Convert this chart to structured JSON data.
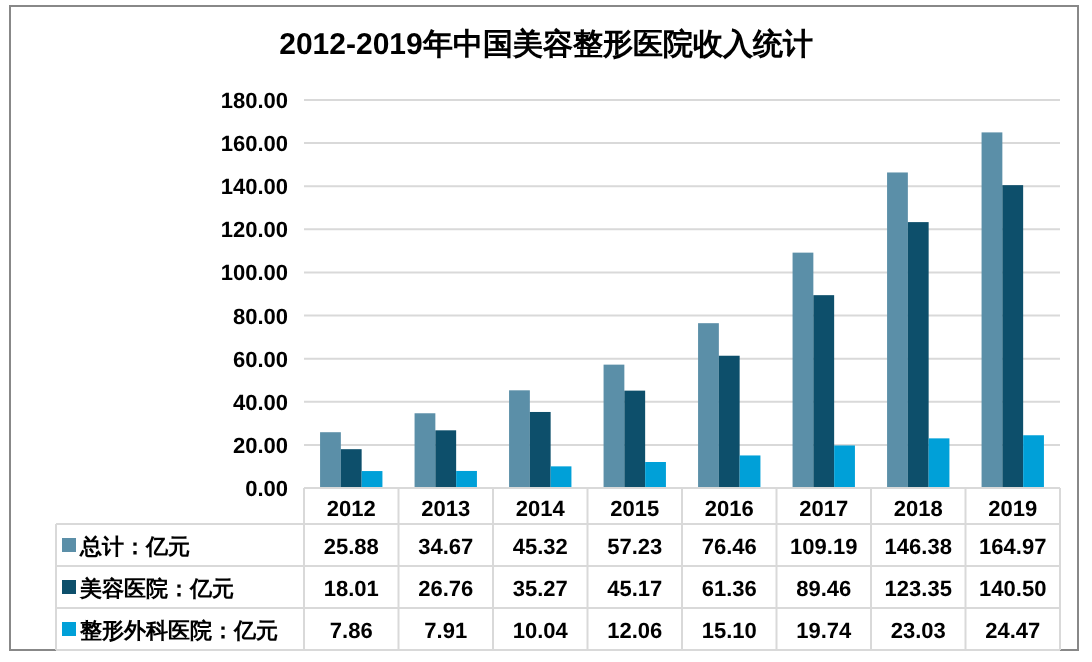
{
  "chart_data": {
    "type": "bar",
    "title": "2012-2019年中国美容整形医院收入统计",
    "categories": [
      "2012",
      "2013",
      "2014",
      "2015",
      "2016",
      "2017",
      "2018",
      "2019"
    ],
    "series": [
      {
        "name": "总计：亿元",
        "color": "#5b8fa8",
        "values": [
          25.88,
          34.67,
          45.32,
          57.23,
          76.46,
          109.19,
          146.38,
          164.97
        ],
        "value_labels": [
          "25.88",
          "34.67",
          "45.32",
          "57.23",
          "76.46",
          "109.19",
          "146.38",
          "164.97"
        ]
      },
      {
        "name": "美容医院：亿元",
        "color": "#0d4f6b",
        "values": [
          18.01,
          26.76,
          35.27,
          45.17,
          61.36,
          89.46,
          123.35,
          140.5
        ],
        "value_labels": [
          "18.01",
          "26.76",
          "35.27",
          "45.17",
          "61.36",
          "89.46",
          "123.35",
          "140.50"
        ]
      },
      {
        "name": "整形外科医院：亿元",
        "color": "#00a0d8",
        "values": [
          7.86,
          7.91,
          10.04,
          12.06,
          15.1,
          19.74,
          23.03,
          24.47
        ],
        "value_labels": [
          "7.86",
          "7.91",
          "10.04",
          "12.06",
          "15.10",
          "19.74",
          "23.03",
          "24.47"
        ]
      }
    ],
    "ylim": [
      0,
      180
    ],
    "yticks": [
      {
        "value": 0,
        "label": "0.00"
      },
      {
        "value": 20,
        "label": "20.00"
      },
      {
        "value": 40,
        "label": "40.00"
      },
      {
        "value": 60,
        "label": "60.00"
      },
      {
        "value": 80,
        "label": "80.00"
      },
      {
        "value": 100,
        "label": "100.00"
      },
      {
        "value": 120,
        "label": "120.00"
      },
      {
        "value": 140,
        "label": "140.00"
      },
      {
        "value": 160,
        "label": "160.00"
      },
      {
        "value": 180,
        "label": "180.00"
      }
    ],
    "grid": "y",
    "legend": "bottom"
  }
}
